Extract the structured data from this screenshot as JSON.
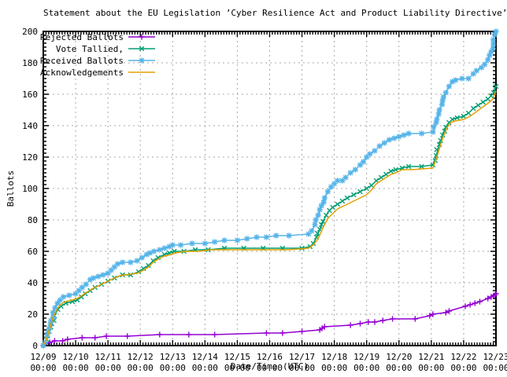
{
  "title": "Statement about the EU Legislation ’Cyber Resilience Act and Product Liability Directive’",
  "y_axis": {
    "label": "Ballots",
    "min": 0,
    "max": 200,
    "tick_step": 20,
    "minor_step": 2.5
  },
  "x_axis": {
    "label": "Date/Time (UTC)",
    "tick_dates": [
      "12/09",
      "12/10",
      "12/11",
      "12/12",
      "12/13",
      "12/14",
      "12/15",
      "12/16",
      "12/17",
      "12/18",
      "12/19",
      "12/20",
      "12/21",
      "12/22",
      "12/23"
    ],
    "tick_time": "00:00",
    "minor_per_day": 12
  },
  "legend": {
    "position": "top-left",
    "entries": [
      "Rejected Ballots",
      "Vote Tallied,",
      "Received Ballots",
      "Acknowledgements"
    ]
  },
  "colors": {
    "grid": "#a8a8a8",
    "frame": "#000000"
  },
  "chart_data": {
    "type": "line",
    "title": "Statement about the EU Legislation ’Cyber Resilience Act and Product Liability Directive’",
    "xlabel": "Date/Time (UTC)",
    "ylabel": "Ballots",
    "x_unit": "days since 12/09 00:00 UTC",
    "xlim": [
      0,
      14
    ],
    "ylim": [
      0,
      200
    ],
    "grid": true,
    "series": [
      {
        "name": "Rejected Ballots",
        "color": "#9400d3",
        "marker": "plus",
        "points": [
          [
            0,
            0
          ],
          [
            0.2,
            2
          ],
          [
            0.35,
            3
          ],
          [
            0.6,
            3
          ],
          [
            0.75,
            4
          ],
          [
            1.2,
            5
          ],
          [
            1.6,
            5
          ],
          [
            1.95,
            6
          ],
          [
            2.6,
            6
          ],
          [
            3.6,
            7
          ],
          [
            4.5,
            7
          ],
          [
            5.3,
            7
          ],
          [
            6.9,
            8
          ],
          [
            7.4,
            8
          ],
          [
            8.0,
            9
          ],
          [
            8.55,
            10
          ],
          [
            8.62,
            11
          ],
          [
            8.7,
            12
          ],
          [
            9.5,
            13
          ],
          [
            9.8,
            14
          ],
          [
            10.05,
            15
          ],
          [
            10.25,
            15
          ],
          [
            10.5,
            16
          ],
          [
            10.8,
            17
          ],
          [
            11.5,
            17
          ],
          [
            11.95,
            19
          ],
          [
            12.05,
            20
          ],
          [
            12.45,
            21
          ],
          [
            12.55,
            22
          ],
          [
            13.05,
            25
          ],
          [
            13.2,
            26
          ],
          [
            13.35,
            27
          ],
          [
            13.5,
            28
          ],
          [
            13.75,
            30
          ],
          [
            13.85,
            31
          ],
          [
            13.95,
            32
          ],
          [
            14,
            33
          ]
        ]
      },
      {
        "name": "Vote Tallied,",
        "color": "#009e73",
        "marker": "cross",
        "points": [
          [
            0,
            0
          ],
          [
            0.1,
            4
          ],
          [
            0.18,
            9
          ],
          [
            0.26,
            14
          ],
          [
            0.34,
            19
          ],
          [
            0.45,
            23
          ],
          [
            0.55,
            25
          ],
          [
            0.7,
            27
          ],
          [
            0.9,
            28
          ],
          [
            1.05,
            29
          ],
          [
            1.18,
            31
          ],
          [
            1.3,
            33
          ],
          [
            1.45,
            35
          ],
          [
            1.6,
            37
          ],
          [
            1.8,
            39
          ],
          [
            2.0,
            41
          ],
          [
            2.2,
            43
          ],
          [
            2.45,
            45
          ],
          [
            2.7,
            45
          ],
          [
            2.95,
            47
          ],
          [
            3.1,
            49
          ],
          [
            3.25,
            51
          ],
          [
            3.4,
            54
          ],
          [
            3.55,
            56
          ],
          [
            3.75,
            58
          ],
          [
            3.9,
            59
          ],
          [
            4.05,
            60
          ],
          [
            4.35,
            60
          ],
          [
            4.7,
            61
          ],
          [
            5.1,
            61
          ],
          [
            5.6,
            62
          ],
          [
            6.2,
            62
          ],
          [
            6.8,
            62
          ],
          [
            7.4,
            62
          ],
          [
            8.0,
            62
          ],
          [
            8.25,
            63
          ],
          [
            8.35,
            65
          ],
          [
            8.45,
            69
          ],
          [
            8.55,
            74
          ],
          [
            8.65,
            79
          ],
          [
            8.75,
            83
          ],
          [
            8.85,
            86
          ],
          [
            8.95,
            88
          ],
          [
            9.1,
            90
          ],
          [
            9.25,
            92
          ],
          [
            9.4,
            94
          ],
          [
            9.6,
            96
          ],
          [
            9.8,
            98
          ],
          [
            10.0,
            100
          ],
          [
            10.15,
            102
          ],
          [
            10.3,
            105
          ],
          [
            10.45,
            107
          ],
          [
            10.6,
            109
          ],
          [
            10.75,
            111
          ],
          [
            10.9,
            112
          ],
          [
            11.1,
            113
          ],
          [
            11.3,
            114
          ],
          [
            11.7,
            114
          ],
          [
            12.05,
            115
          ],
          [
            12.15,
            121
          ],
          [
            12.25,
            128
          ],
          [
            12.35,
            134
          ],
          [
            12.45,
            139
          ],
          [
            12.55,
            142
          ],
          [
            12.65,
            144
          ],
          [
            12.8,
            145
          ],
          [
            13.0,
            146
          ],
          [
            13.15,
            148
          ],
          [
            13.3,
            151
          ],
          [
            13.45,
            153
          ],
          [
            13.6,
            155
          ],
          [
            13.75,
            157
          ],
          [
            13.85,
            159
          ],
          [
            13.93,
            161
          ],
          [
            14,
            165
          ]
        ]
      },
      {
        "name": "Received Ballots",
        "color": "#56b4e9",
        "marker": "asterisk",
        "points": [
          [
            0,
            0
          ],
          [
            0.06,
            2
          ],
          [
            0.12,
            6
          ],
          [
            0.18,
            11
          ],
          [
            0.24,
            16
          ],
          [
            0.3,
            21
          ],
          [
            0.36,
            24
          ],
          [
            0.44,
            27
          ],
          [
            0.52,
            29
          ],
          [
            0.62,
            31
          ],
          [
            0.8,
            32
          ],
          [
            1.0,
            33
          ],
          [
            1.1,
            35
          ],
          [
            1.2,
            37
          ],
          [
            1.32,
            39
          ],
          [
            1.45,
            42
          ],
          [
            1.55,
            43
          ],
          [
            1.7,
            44
          ],
          [
            1.85,
            45
          ],
          [
            2.0,
            46
          ],
          [
            2.1,
            48
          ],
          [
            2.2,
            50
          ],
          [
            2.3,
            52
          ],
          [
            2.45,
            53
          ],
          [
            2.7,
            53
          ],
          [
            2.9,
            54
          ],
          [
            3.05,
            56
          ],
          [
            3.2,
            58
          ],
          [
            3.3,
            59
          ],
          [
            3.42,
            60
          ],
          [
            3.6,
            61
          ],
          [
            3.75,
            62
          ],
          [
            3.9,
            63
          ],
          [
            4.0,
            64
          ],
          [
            4.25,
            64
          ],
          [
            4.6,
            65
          ],
          [
            5.0,
            65
          ],
          [
            5.3,
            66
          ],
          [
            5.6,
            67
          ],
          [
            6.0,
            67
          ],
          [
            6.3,
            68
          ],
          [
            6.6,
            69
          ],
          [
            6.9,
            69
          ],
          [
            7.2,
            70
          ],
          [
            7.6,
            70
          ],
          [
            8.2,
            71
          ],
          [
            8.3,
            73
          ],
          [
            8.4,
            77
          ],
          [
            8.5,
            83
          ],
          [
            8.6,
            89
          ],
          [
            8.7,
            94
          ],
          [
            8.8,
            98
          ],
          [
            8.9,
            101
          ],
          [
            9.0,
            103
          ],
          [
            9.1,
            105
          ],
          [
            9.25,
            105
          ],
          [
            9.35,
            107
          ],
          [
            9.5,
            110
          ],
          [
            9.65,
            112
          ],
          [
            9.8,
            115
          ],
          [
            9.9,
            117
          ],
          [
            10.0,
            120
          ],
          [
            10.1,
            122
          ],
          [
            10.25,
            124
          ],
          [
            10.4,
            127
          ],
          [
            10.55,
            129
          ],
          [
            10.7,
            131
          ],
          [
            10.85,
            132
          ],
          [
            11.0,
            133
          ],
          [
            11.15,
            134
          ],
          [
            11.3,
            135
          ],
          [
            11.7,
            135
          ],
          [
            12.05,
            136
          ],
          [
            12.15,
            142
          ],
          [
            12.25,
            150
          ],
          [
            12.35,
            156
          ],
          [
            12.45,
            161
          ],
          [
            12.55,
            165
          ],
          [
            12.65,
            168
          ],
          [
            12.75,
            169
          ],
          [
            12.95,
            170
          ],
          [
            13.15,
            170
          ],
          [
            13.3,
            173
          ],
          [
            13.4,
            175
          ],
          [
            13.55,
            177
          ],
          [
            13.65,
            179
          ],
          [
            13.75,
            182
          ],
          [
            13.85,
            187
          ],
          [
            13.92,
            192
          ],
          [
            14,
            200
          ]
        ]
      },
      {
        "name": "Acknowledgements",
        "color": "#e69f00",
        "marker": "none",
        "points": [
          [
            0,
            0
          ],
          [
            0.08,
            3
          ],
          [
            0.16,
            8
          ],
          [
            0.24,
            14
          ],
          [
            0.32,
            19
          ],
          [
            0.42,
            23
          ],
          [
            0.52,
            26
          ],
          [
            0.68,
            28
          ],
          [
            0.9,
            29
          ],
          [
            1.05,
            30
          ],
          [
            1.2,
            32
          ],
          [
            1.35,
            34
          ],
          [
            1.5,
            36
          ],
          [
            1.7,
            38
          ],
          [
            1.9,
            40
          ],
          [
            2.1,
            42
          ],
          [
            2.3,
            44
          ],
          [
            2.5,
            45
          ],
          [
            2.9,
            46
          ],
          [
            3.1,
            48
          ],
          [
            3.25,
            50
          ],
          [
            3.4,
            53
          ],
          [
            3.55,
            55
          ],
          [
            3.75,
            57
          ],
          [
            3.95,
            58
          ],
          [
            4.1,
            59
          ],
          [
            4.4,
            60
          ],
          [
            4.8,
            60
          ],
          [
            5.2,
            61
          ],
          [
            6.0,
            61
          ],
          [
            6.8,
            61
          ],
          [
            7.6,
            61
          ],
          [
            8.2,
            62
          ],
          [
            8.35,
            64
          ],
          [
            8.5,
            68
          ],
          [
            8.65,
            75
          ],
          [
            8.8,
            81
          ],
          [
            8.95,
            84
          ],
          [
            9.1,
            87
          ],
          [
            9.3,
            89
          ],
          [
            9.5,
            91
          ],
          [
            9.7,
            93
          ],
          [
            9.9,
            95
          ],
          [
            10.0,
            96
          ],
          [
            10.15,
            99
          ],
          [
            10.3,
            103
          ],
          [
            10.45,
            105
          ],
          [
            10.6,
            107
          ],
          [
            10.75,
            109
          ],
          [
            10.9,
            110
          ],
          [
            11.1,
            112
          ],
          [
            11.4,
            112
          ],
          [
            12.05,
            113
          ],
          [
            12.2,
            122
          ],
          [
            12.35,
            132
          ],
          [
            12.5,
            139
          ],
          [
            12.6,
            142
          ],
          [
            12.75,
            143
          ],
          [
            13.0,
            144
          ],
          [
            13.2,
            146
          ],
          [
            13.4,
            149
          ],
          [
            13.6,
            152
          ],
          [
            13.8,
            155
          ],
          [
            13.9,
            157
          ],
          [
            14,
            162
          ]
        ]
      }
    ]
  }
}
